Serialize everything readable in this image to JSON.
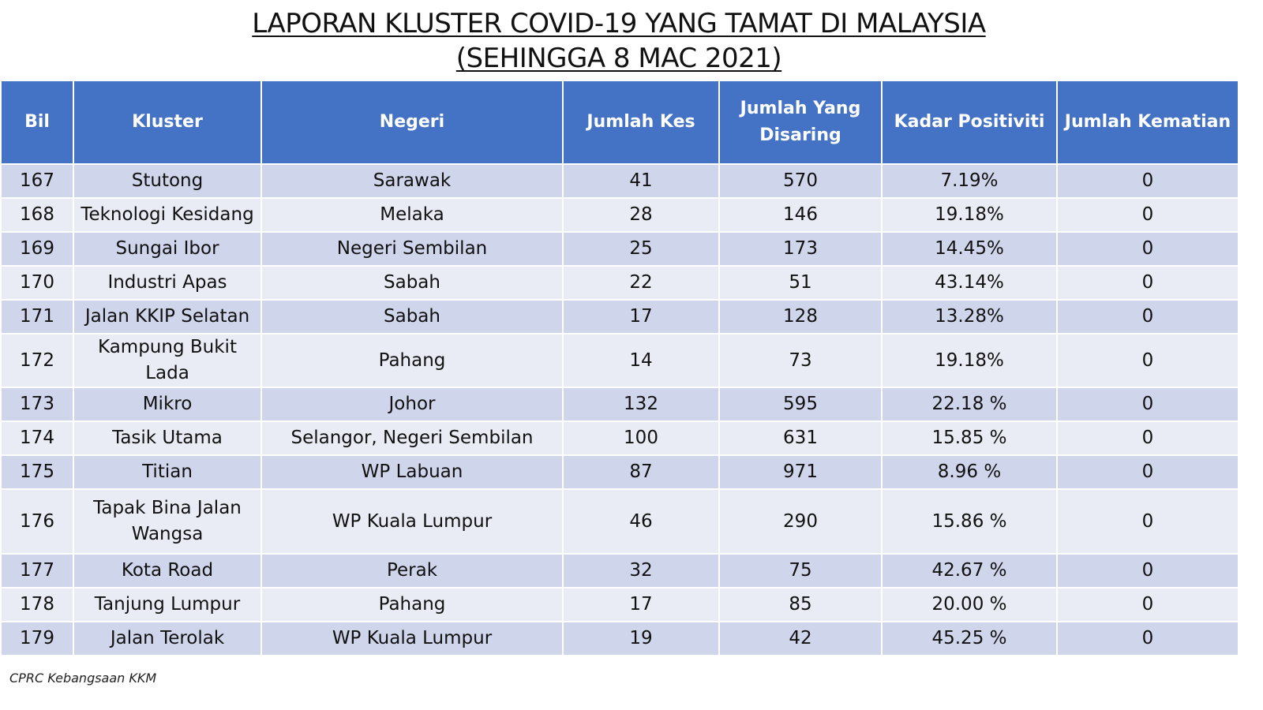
{
  "title": {
    "line1": "LAPORAN KLUSTER COVID-19 YANG TAMAT DI MALAYSIA",
    "line2": "(SEHINGGA  8 MAC 2021)"
  },
  "table": {
    "headers": [
      "Bil",
      "Kluster",
      "Negeri",
      "Jumlah Kes",
      "Jumlah Yang Disaring",
      "Kadar Positiviti",
      "Jumlah Kematian"
    ],
    "rows": [
      [
        "167",
        "Stutong",
        "Sarawak",
        "41",
        "570",
        "7.19%",
        "0"
      ],
      [
        "168",
        "Teknologi Kesidang",
        "Melaka",
        "28",
        "146",
        "19.18%",
        "0"
      ],
      [
        "169",
        "Sungai Ibor",
        "Negeri Sembilan",
        "25",
        "173",
        "14.45%",
        "0"
      ],
      [
        "170",
        "Industri Apas",
        "Sabah",
        "22",
        "51",
        "43.14%",
        "0"
      ],
      [
        "171",
        "Jalan KKIP Selatan",
        "Sabah",
        "17",
        "128",
        "13.28%",
        "0"
      ],
      [
        "172",
        "Kampung Bukit Lada",
        "Pahang",
        "14",
        "73",
        "19.18%",
        "0"
      ],
      [
        "173",
        "Mikro",
        "Johor",
        "132",
        "595",
        "22.18 %",
        "0"
      ],
      [
        "174",
        "Tasik Utama",
        "Selangor, Negeri Sembilan",
        "100",
        "631",
        "15.85 %",
        "0"
      ],
      [
        "175",
        "Titian",
        "WP Labuan",
        "87",
        "971",
        "8.96 %",
        "0"
      ],
      [
        "176",
        "Tapak Bina Jalan Wangsa",
        "WP Kuala Lumpur",
        "46",
        "290",
        "15.86 %",
        "0"
      ],
      [
        "177",
        "Kota Road",
        "Perak",
        "32",
        "75",
        "42.67 %",
        "0"
      ],
      [
        "178",
        "Tanjung Lumpur",
        "Pahang",
        "17",
        "85",
        "20.00 %",
        "0"
      ],
      [
        "179",
        "Jalan Terolak",
        "WP Kuala Lumpur",
        "19",
        "42",
        "45.25 %",
        "0"
      ]
    ]
  },
  "footer": "CPRC Kebangsaan KKM",
  "colors": {
    "header_bg": "#4472c4",
    "row_odd": "#cfd5ea",
    "row_even": "#e9ebf5"
  }
}
